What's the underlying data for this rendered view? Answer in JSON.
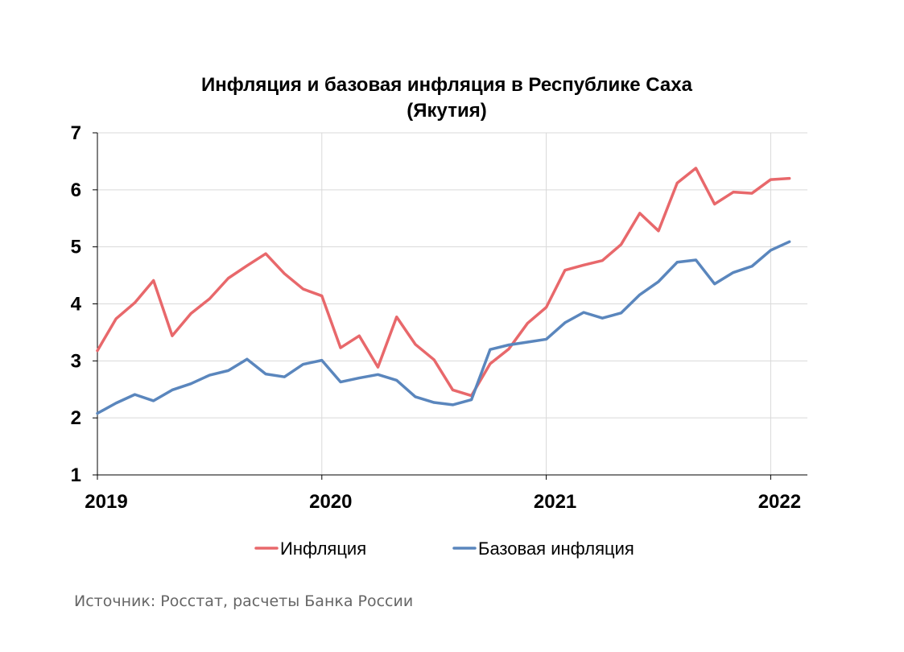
{
  "chart_data": {
    "type": "line",
    "title_line1": "Инфляция и базовая инфляция в Республике Саха",
    "title_line2": "(Якутия)",
    "xlabel": "",
    "ylabel": "",
    "ylim": [
      1,
      7
    ],
    "yticks": [
      "1",
      "2",
      "3",
      "4",
      "5",
      "6",
      "7"
    ],
    "x_start": "2019-01",
    "x_ticks": [
      "2019",
      "2020",
      "2021",
      "2022"
    ],
    "grid": true,
    "legend_position": "bottom",
    "series": [
      {
        "name": "Инфляция",
        "color": "#e8686b",
        "values": [
          3.18,
          3.74,
          4.02,
          4.41,
          3.44,
          3.83,
          4.09,
          4.45,
          4.67,
          4.88,
          4.53,
          4.26,
          4.14,
          3.23,
          3.44,
          2.89,
          3.77,
          3.29,
          3.02,
          2.49,
          2.39,
          2.95,
          3.21,
          3.66,
          3.94,
          4.59,
          4.68,
          4.76,
          5.04,
          5.59,
          5.28,
          6.12,
          6.38,
          5.75,
          5.96,
          5.94,
          6.18,
          6.2
        ]
      },
      {
        "name": "Базовая инфляция",
        "color": "#5a86bd",
        "values": [
          2.08,
          2.26,
          2.41,
          2.3,
          2.49,
          2.6,
          2.75,
          2.83,
          3.03,
          2.77,
          2.72,
          2.94,
          3.01,
          2.63,
          2.7,
          2.76,
          2.66,
          2.37,
          2.27,
          2.23,
          2.32,
          3.2,
          3.28,
          3.33,
          3.38,
          3.67,
          3.85,
          3.75,
          3.84,
          4.16,
          4.39,
          4.73,
          4.77,
          4.35,
          4.55,
          4.66,
          4.94,
          5.09
        ]
      }
    ]
  },
  "source_note": "Источник: Росстат, расчеты Банка России"
}
